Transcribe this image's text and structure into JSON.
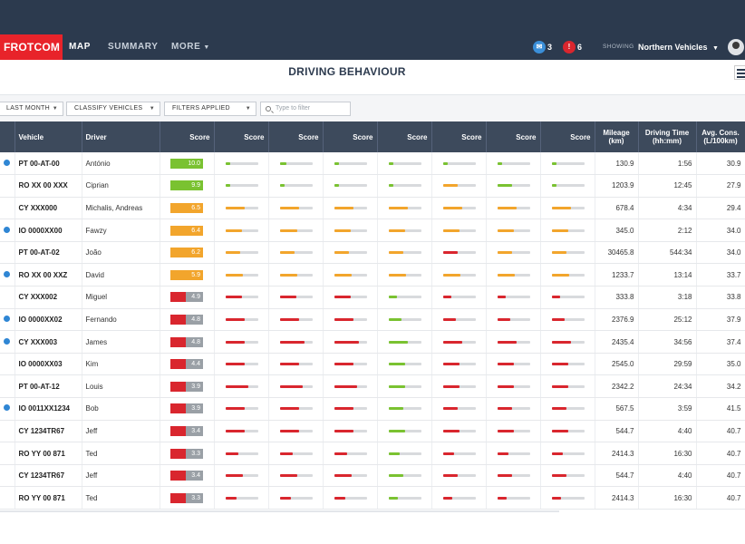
{
  "nav": {
    "logo": "FROTCOM",
    "items": [
      "MAP",
      "SUMMARY",
      "MORE"
    ],
    "messages_count": "3",
    "alerts_count": "6",
    "showing_label": "SHOWING",
    "showing_value": "Northern Vehicles"
  },
  "page_title": "DRIVING BEHAVIOUR",
  "filters": {
    "period": "LAST MONTH",
    "classify": "CLASSIFY VEHICLES",
    "applied": "FILTERS APPLIED",
    "search_placeholder": "Type to filter"
  },
  "table": {
    "headers": {
      "vehicle": "Vehicle",
      "driver": "Driver",
      "score": "Score",
      "mileage_line1": "Mileage",
      "mileage_line2": "(km)",
      "driving_time_line1": "Driving Time",
      "driving_time_line2": "(hh:mm)",
      "consumption_line1": "Avg. Cons.",
      "consumption_line2": "(L/100km)"
    },
    "rows": [
      {
        "vehicle": "PT 00-AT-00",
        "driver": "António",
        "score": "10.0",
        "info": true,
        "mileage": "130.9",
        "time": "1:56",
        "cons": "30.9",
        "bars": [
          {
            "l": 0.15,
            "c": "g"
          },
          {
            "l": 0.2,
            "c": "g"
          },
          {
            "l": 0.15,
            "c": "g"
          },
          {
            "l": 0.15,
            "c": "g"
          },
          {
            "l": 0.15,
            "c": "g"
          },
          {
            "l": 0.15,
            "c": "g"
          },
          {
            "l": 0.15,
            "c": "g"
          }
        ]
      },
      {
        "vehicle": "RO XX 00 XXX",
        "driver": "Ciprian",
        "score": "9.9",
        "info": false,
        "mileage": "1203.9",
        "time": "12:45",
        "cons": "27.9",
        "bars": [
          {
            "l": 0.15,
            "c": "g"
          },
          {
            "l": 0.15,
            "c": "g"
          },
          {
            "l": 0.15,
            "c": "g"
          },
          {
            "l": 0.15,
            "c": "g"
          },
          {
            "l": 0.45,
            "c": "o"
          },
          {
            "l": 0.45,
            "c": "g"
          },
          {
            "l": 0.15,
            "c": "g"
          }
        ]
      },
      {
        "vehicle": "CY XXX000",
        "driver": "Michalis, Andreas",
        "score": "6.5",
        "info": false,
        "mileage": "678.4",
        "time": "4:34",
        "cons": "29.4",
        "bars": [
          {
            "l": 0.6,
            "c": "o"
          },
          {
            "l": 0.6,
            "c": "o"
          },
          {
            "l": 0.6,
            "c": "o"
          },
          {
            "l": 0.6,
            "c": "o"
          },
          {
            "l": 0.6,
            "c": "o"
          },
          {
            "l": 0.6,
            "c": "o"
          },
          {
            "l": 0.6,
            "c": "o"
          }
        ]
      },
      {
        "vehicle": "IO 0000XX00",
        "driver": "Fawzy",
        "score": "6.4",
        "info": true,
        "mileage": "345.0",
        "time": "2:12",
        "cons": "34.0",
        "bars": [
          {
            "l": 0.5,
            "c": "o"
          },
          {
            "l": 0.55,
            "c": "o"
          },
          {
            "l": 0.5,
            "c": "o"
          },
          {
            "l": 0.5,
            "c": "o"
          },
          {
            "l": 0.5,
            "c": "o"
          },
          {
            "l": 0.5,
            "c": "o"
          },
          {
            "l": 0.5,
            "c": "o"
          }
        ]
      },
      {
        "vehicle": "PT 00-AT-02",
        "driver": "João",
        "score": "6.2",
        "info": false,
        "mileage": "30465.8",
        "time": "544:34",
        "cons": "34.0",
        "bars": [
          {
            "l": 0.45,
            "c": "o"
          },
          {
            "l": 0.45,
            "c": "o"
          },
          {
            "l": 0.45,
            "c": "o"
          },
          {
            "l": 0.45,
            "c": "o"
          },
          {
            "l": 0.45,
            "c": "r"
          },
          {
            "l": 0.45,
            "c": "o"
          },
          {
            "l": 0.45,
            "c": "o"
          }
        ]
      },
      {
        "vehicle": "RO XX 00 XXZ",
        "driver": "David",
        "score": "5.9",
        "info": true,
        "mileage": "1233.7",
        "time": "13:14",
        "cons": "33.7",
        "bars": [
          {
            "l": 0.55,
            "c": "o"
          },
          {
            "l": 0.55,
            "c": "o"
          },
          {
            "l": 0.55,
            "c": "o"
          },
          {
            "l": 0.55,
            "c": "o"
          },
          {
            "l": 0.55,
            "c": "o"
          },
          {
            "l": 0.55,
            "c": "o"
          },
          {
            "l": 0.55,
            "c": "o"
          }
        ]
      },
      {
        "vehicle": "CY XXX002",
        "driver": "Miguel",
        "score": "4.9",
        "info": false,
        "mileage": "333.8",
        "time": "3:18",
        "cons": "33.8",
        "bars": [
          {
            "l": 0.5,
            "c": "r"
          },
          {
            "l": 0.5,
            "c": "r"
          },
          {
            "l": 0.5,
            "c": "r"
          },
          {
            "l": 0.25,
            "c": "g"
          },
          {
            "l": 0.25,
            "c": "r"
          },
          {
            "l": 0.25,
            "c": "r"
          },
          {
            "l": 0.25,
            "c": "r"
          }
        ]
      },
      {
        "vehicle": "IO 0000XX02",
        "driver": "Fernando",
        "score": "4.8",
        "info": true,
        "mileage": "2376.9",
        "time": "25:12",
        "cons": "37.9",
        "bars": [
          {
            "l": 0.6,
            "c": "r"
          },
          {
            "l": 0.6,
            "c": "r"
          },
          {
            "l": 0.6,
            "c": "r"
          },
          {
            "l": 0.4,
            "c": "g"
          },
          {
            "l": 0.4,
            "c": "r"
          },
          {
            "l": 0.4,
            "c": "r"
          },
          {
            "l": 0.4,
            "c": "r"
          }
        ]
      },
      {
        "vehicle": "CY XXX003",
        "driver": "James",
        "score": "4.8",
        "info": true,
        "mileage": "2435.4",
        "time": "34:56",
        "cons": "37.4",
        "bars": [
          {
            "l": 0.6,
            "c": "r"
          },
          {
            "l": 0.75,
            "c": "r"
          },
          {
            "l": 0.75,
            "c": "r"
          },
          {
            "l": 0.6,
            "c": "g"
          },
          {
            "l": 0.6,
            "c": "r"
          },
          {
            "l": 0.6,
            "c": "r"
          },
          {
            "l": 0.6,
            "c": "r"
          }
        ]
      },
      {
        "vehicle": "IO 0000XX03",
        "driver": "Kim",
        "score": "4.4",
        "info": false,
        "mileage": "2545.0",
        "time": "29:59",
        "cons": "35.0",
        "bars": [
          {
            "l": 0.6,
            "c": "r"
          },
          {
            "l": 0.6,
            "c": "r"
          },
          {
            "l": 0.6,
            "c": "r"
          },
          {
            "l": 0.5,
            "c": "g"
          },
          {
            "l": 0.5,
            "c": "r"
          },
          {
            "l": 0.5,
            "c": "r"
          },
          {
            "l": 0.5,
            "c": "r"
          }
        ]
      },
      {
        "vehicle": "PT 00-AT-12",
        "driver": "Louis",
        "score": "3.9",
        "info": false,
        "mileage": "2342.2",
        "time": "24:34",
        "cons": "34.2",
        "bars": [
          {
            "l": 0.7,
            "c": "r"
          },
          {
            "l": 0.7,
            "c": "r"
          },
          {
            "l": 0.7,
            "c": "r"
          },
          {
            "l": 0.5,
            "c": "g"
          },
          {
            "l": 0.5,
            "c": "r"
          },
          {
            "l": 0.5,
            "c": "r"
          },
          {
            "l": 0.5,
            "c": "r"
          }
        ]
      },
      {
        "vehicle": "IO 0011XX1234",
        "driver": "Bob",
        "score": "3.9",
        "info": true,
        "mileage": "567.5",
        "time": "3:59",
        "cons": "41.5",
        "bars": [
          {
            "l": 0.6,
            "c": "r"
          },
          {
            "l": 0.6,
            "c": "r"
          },
          {
            "l": 0.6,
            "c": "r"
          },
          {
            "l": 0.45,
            "c": "g"
          },
          {
            "l": 0.45,
            "c": "r"
          },
          {
            "l": 0.45,
            "c": "r"
          },
          {
            "l": 0.45,
            "c": "r"
          }
        ]
      },
      {
        "vehicle": "CY 1234TR67",
        "driver": "Jeff",
        "score": "3.4",
        "info": false,
        "mileage": "544.7",
        "time": "4:40",
        "cons": "40.7",
        "bars": [
          {
            "l": 0.6,
            "c": "r"
          },
          {
            "l": 0.6,
            "c": "r"
          },
          {
            "l": 0.6,
            "c": "r"
          },
          {
            "l": 0.5,
            "c": "g"
          },
          {
            "l": 0.5,
            "c": "r"
          },
          {
            "l": 0.5,
            "c": "r"
          },
          {
            "l": 0.5,
            "c": "r"
          }
        ]
      },
      {
        "vehicle": "RO YY 00 871",
        "driver": "Ted",
        "score": "3.3",
        "info": false,
        "mileage": "2414.3",
        "time": "16:30",
        "cons": "40.7",
        "bars": [
          {
            "l": 0.4,
            "c": "r"
          },
          {
            "l": 0.4,
            "c": "r"
          },
          {
            "l": 0.4,
            "c": "r"
          },
          {
            "l": 0.35,
            "c": "g"
          },
          {
            "l": 0.35,
            "c": "r"
          },
          {
            "l": 0.35,
            "c": "r"
          },
          {
            "l": 0.35,
            "c": "r"
          }
        ]
      },
      {
        "vehicle": "CY 1234TR67",
        "driver": "Jeff",
        "score": "3.4",
        "info": false,
        "mileage": "544.7",
        "time": "4:40",
        "cons": "40.7",
        "bars": [
          {
            "l": 0.55,
            "c": "r"
          },
          {
            "l": 0.55,
            "c": "r"
          },
          {
            "l": 0.55,
            "c": "r"
          },
          {
            "l": 0.45,
            "c": "g"
          },
          {
            "l": 0.45,
            "c": "r"
          },
          {
            "l": 0.45,
            "c": "r"
          },
          {
            "l": 0.45,
            "c": "r"
          }
        ]
      },
      {
        "vehicle": "RO YY 00 871",
        "driver": "Ted",
        "score": "3.3",
        "info": false,
        "mileage": "2414.3",
        "time": "16:30",
        "cons": "40.7",
        "bars": [
          {
            "l": 0.35,
            "c": "r"
          },
          {
            "l": 0.35,
            "c": "r"
          },
          {
            "l": 0.35,
            "c": "r"
          },
          {
            "l": 0.3,
            "c": "g"
          },
          {
            "l": 0.3,
            "c": "r"
          },
          {
            "l": 0.3,
            "c": "r"
          },
          {
            "l": 0.3,
            "c": "r"
          }
        ]
      }
    ]
  },
  "colors": {
    "header_bg": "#2c3a4e",
    "brand_red": "#e8232a",
    "good": "#7ac231",
    "warn": "#f2a52c",
    "bad": "#d9262e",
    "info": "#2f86d4"
  }
}
